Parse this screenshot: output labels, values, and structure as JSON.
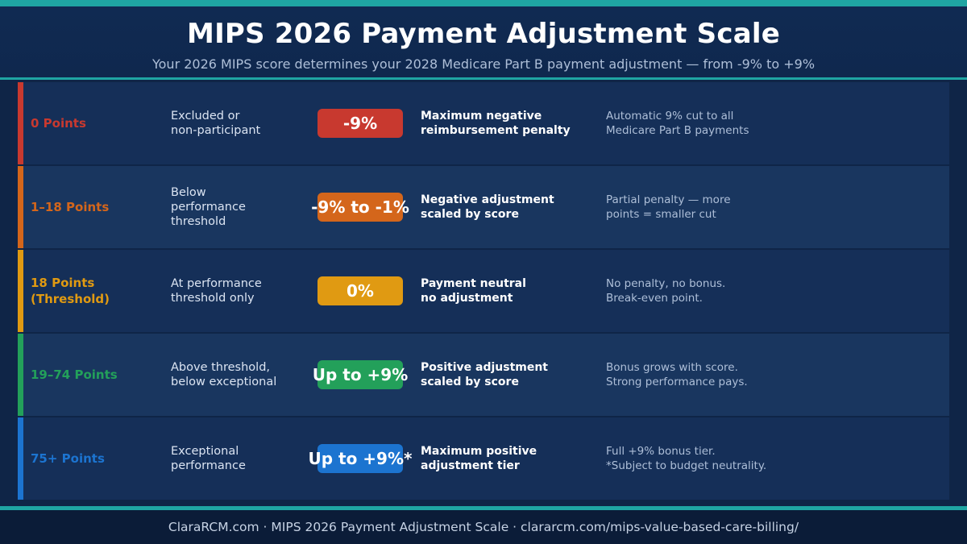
{
  "header": {
    "title": "MIPS 2026 Payment Adjustment Scale",
    "subtitle": "Your 2026 MIPS score determines your 2028 Medicare Part B payment adjustment — from -9% to +9%"
  },
  "rows": [
    {
      "points_line1": "0 Points",
      "points_line2": "",
      "desc_line1": "Excluded or",
      "desc_line2": "non-participant",
      "desc_line3": "",
      "badge": "-9%",
      "effect_line1": "Maximum negative",
      "effect_line2": "reimbursement penalty",
      "note_line1": "Automatic 9% cut to all",
      "note_line2": "Medicare Part B payments",
      "color": "#c8392f"
    },
    {
      "points_line1": "1–18 Points",
      "points_line2": "",
      "desc_line1": "Below",
      "desc_line2": "performance",
      "desc_line3": "threshold",
      "badge": "-9% to -1%",
      "effect_line1": "Negative adjustment",
      "effect_line2": "scaled by score",
      "note_line1": "Partial penalty — more",
      "note_line2": "points = smaller cut",
      "color": "#d4661b"
    },
    {
      "points_line1": "18 Points",
      "points_line2": "(Threshold)",
      "desc_line1": "At performance",
      "desc_line2": "threshold only",
      "desc_line3": "",
      "badge": "0%",
      "effect_line1": "Payment neutral",
      "effect_line2": "no adjustment",
      "note_line1": "No penalty, no bonus.",
      "note_line2": "Break-even point.",
      "color": "#e09a12"
    },
    {
      "points_line1": "19–74 Points",
      "points_line2": "",
      "desc_line1": "Above threshold,",
      "desc_line2": "below exceptional",
      "desc_line3": "",
      "badge": "Up to +9%",
      "effect_line1": "Positive adjustment",
      "effect_line2": "scaled by score",
      "note_line1": "Bonus grows with score.",
      "note_line2": "Strong performance pays.",
      "color": "#23a05a"
    },
    {
      "points_line1": "75+ Points",
      "points_line2": "",
      "desc_line1": "Exceptional",
      "desc_line2": "performance",
      "desc_line3": "",
      "badge": "Up to +9%*",
      "effect_line1": "Maximum positive",
      "effect_line2": "adjustment tier",
      "note_line1": "Full +9% bonus tier.",
      "note_line2": "*Subject to budget neutrality.",
      "color": "#1c74d0"
    }
  ],
  "footer": {
    "text": "ClaraRCM.com · MIPS 2026 Payment Adjustment Scale · clararcm.com/mips-value-based-care-billing/"
  }
}
